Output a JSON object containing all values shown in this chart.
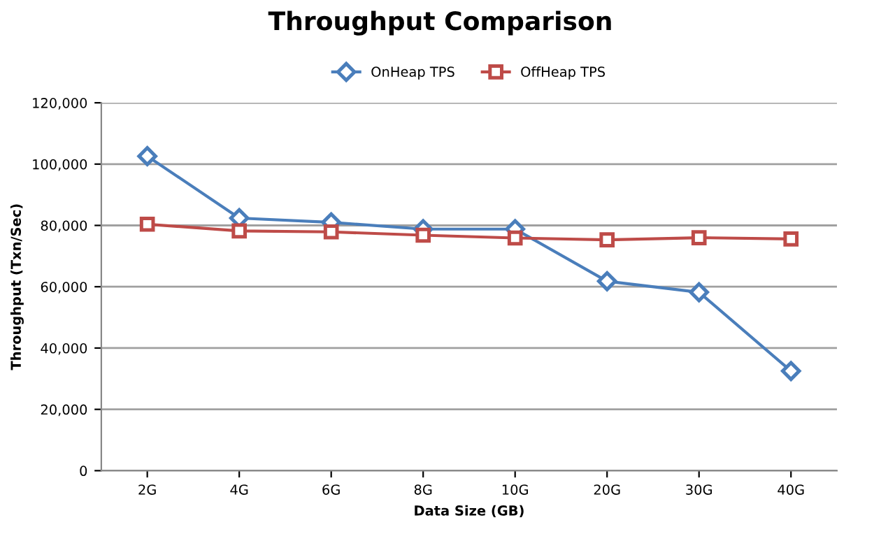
{
  "chart_data": {
    "type": "line",
    "title": "Throughput Comparison",
    "xlabel": "Data Size (GB)",
    "ylabel": "Throughput (Txn/Sec)",
    "categories": [
      "2G",
      "4G",
      "6G",
      "8G",
      "10G",
      "20G",
      "30G",
      "40G"
    ],
    "series": [
      {
        "name": "OnHeap TPS",
        "color": "#4a7ebb",
        "marker": "diamond",
        "values": [
          102600,
          82400,
          81000,
          78800,
          78800,
          61800,
          58200,
          32500
        ]
      },
      {
        "name": "OffHeap TPS",
        "color": "#be4b48",
        "marker": "square",
        "values": [
          80400,
          78200,
          77900,
          76800,
          75900,
          75300,
          76000,
          75600
        ]
      }
    ],
    "ylim": [
      0,
      120000
    ],
    "yticks": [
      {
        "value": 0,
        "label": "0"
      },
      {
        "value": 20000,
        "label": "20,000"
      },
      {
        "value": 40000,
        "label": "40,000"
      },
      {
        "value": 60000,
        "label": "60,000"
      },
      {
        "value": 80000,
        "label": "80,000"
      },
      {
        "value": 100000,
        "label": "100,000"
      },
      {
        "value": 120000,
        "label": "120,000"
      }
    ],
    "grid": "y",
    "legend": "top",
    "line_style": "solid"
  }
}
